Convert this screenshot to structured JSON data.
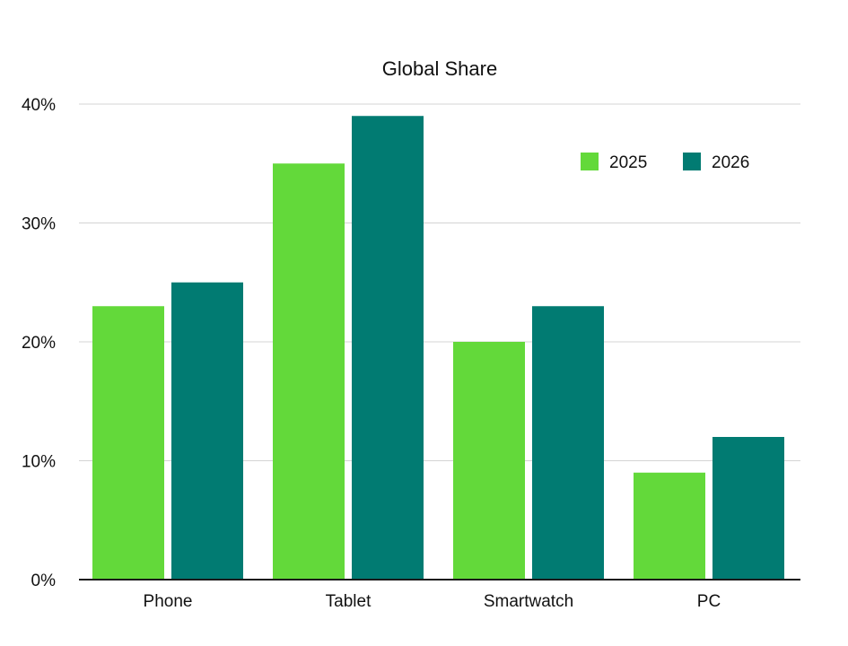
{
  "chart_data": {
    "type": "bar",
    "title": "Global Share",
    "xlabel": "",
    "ylabel": "",
    "categories": [
      "Phone",
      "Tablet",
      "Smartwatch",
      "PC"
    ],
    "series": [
      {
        "name": "2025",
        "values": [
          23,
          35,
          20,
          9
        ],
        "color": "#63d93a"
      },
      {
        "name": "2026",
        "values": [
          25,
          39,
          23,
          12
        ],
        "color": "#017b72"
      }
    ],
    "ylim": [
      0,
      40
    ],
    "yticks": [
      0,
      10,
      20,
      30,
      40
    ],
    "ytick_labels": [
      "0%",
      "10%",
      "20%",
      "30%",
      "40%"
    ],
    "grid": true,
    "legend_position": "top-right"
  }
}
